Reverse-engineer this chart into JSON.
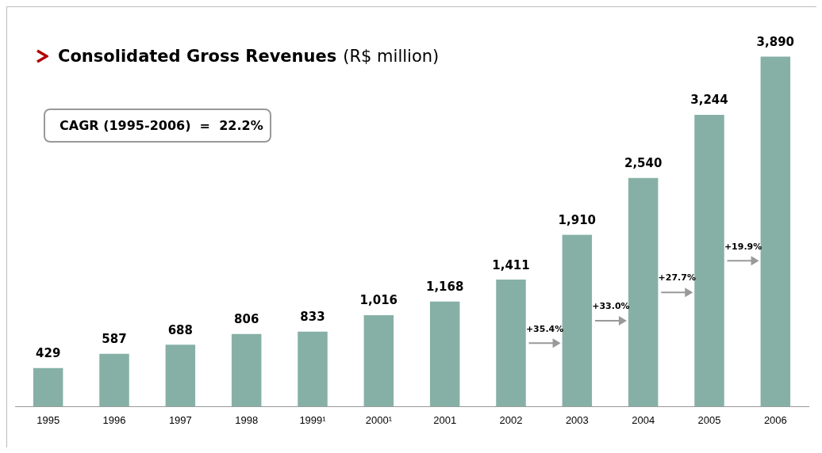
{
  "chart_data": {
    "type": "bar",
    "title": "Consolidated Gross Revenues",
    "subtitle": "(R$ million)",
    "categories": [
      "1995",
      "1996",
      "1997",
      "1998",
      "1999¹",
      "2000¹",
      "2001",
      "2002",
      "2003",
      "2004",
      "2005",
      "2006"
    ],
    "values": [
      429,
      587,
      688,
      806,
      833,
      1016,
      1168,
      1411,
      1910,
      2540,
      3244,
      3890
    ],
    "value_labels": [
      "429",
      "587",
      "688",
      "806",
      "833",
      "1,016",
      "1,168",
      "1,411",
      "1,910",
      "2,540",
      "3,244",
      "3,890"
    ],
    "color": "#86b0a6",
    "grid": false,
    "legend": false,
    "annotations": [
      "CAGR (1995-2006)  =  22.2%",
      "+35.4%",
      "+33.0%",
      "+27.7%",
      "+19.9%"
    ]
  }
}
